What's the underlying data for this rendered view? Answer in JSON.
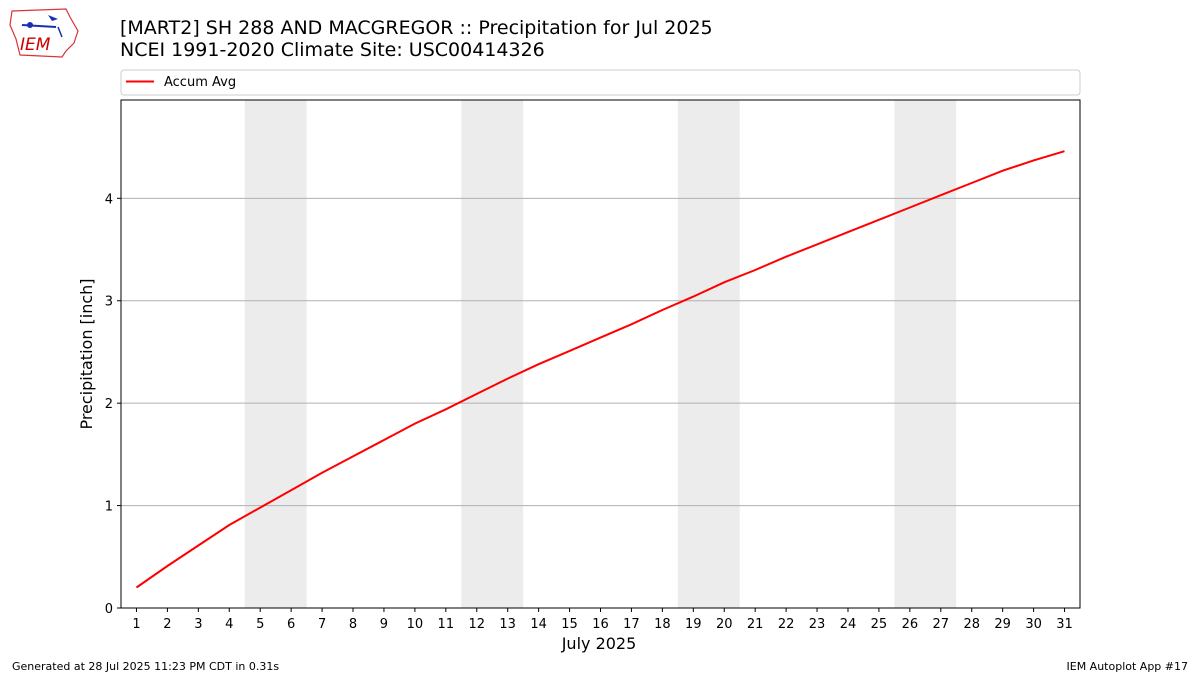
{
  "header": {
    "title_line1": "[MART2] SH 288 AND MACGREGOR :: Precipitation for Jul 2025",
    "title_line2": "NCEI 1991-2020 Climate Site: USC00414326",
    "logo_text": "IEM"
  },
  "footer": {
    "generated": "Generated at 28 Jul 2025 11:23 PM CDT in 0.31s",
    "app": "IEM Autoplot App #17"
  },
  "chart_data": {
    "type": "line",
    "xlabel": "July 2025",
    "ylabel": "Precipitation [inch]",
    "xlim": [
      0.5,
      31.5
    ],
    "ylim": [
      0,
      4.96
    ],
    "x_ticks": [
      1,
      2,
      3,
      4,
      5,
      6,
      7,
      8,
      9,
      10,
      11,
      12,
      13,
      14,
      15,
      16,
      17,
      18,
      19,
      20,
      21,
      22,
      23,
      24,
      25,
      26,
      27,
      28,
      29,
      30,
      31
    ],
    "y_ticks": [
      0,
      1,
      2,
      3,
      4
    ],
    "grid": "horizontal",
    "legend_position": "top",
    "weekend_shading": [
      [
        4.5,
        6.5
      ],
      [
        11.5,
        13.5
      ],
      [
        18.5,
        20.5
      ],
      [
        25.5,
        27.5
      ]
    ],
    "shading_color": "#ececec",
    "series": [
      {
        "name": "Accum Avg",
        "color": "#ff0000",
        "x": [
          1,
          2,
          3,
          4,
          5,
          6,
          7,
          8,
          9,
          10,
          11,
          12,
          13,
          14,
          15,
          16,
          17,
          18,
          19,
          20,
          21,
          22,
          23,
          24,
          25,
          26,
          27,
          28,
          29,
          30,
          31
        ],
        "y": [
          0.2,
          0.41,
          0.61,
          0.81,
          0.98,
          1.15,
          1.32,
          1.48,
          1.64,
          1.8,
          1.94,
          2.09,
          2.24,
          2.38,
          2.51,
          2.64,
          2.77,
          2.91,
          3.04,
          3.18,
          3.3,
          3.43,
          3.55,
          3.67,
          3.79,
          3.91,
          4.03,
          4.15,
          4.27,
          4.37,
          4.46
        ]
      }
    ]
  }
}
